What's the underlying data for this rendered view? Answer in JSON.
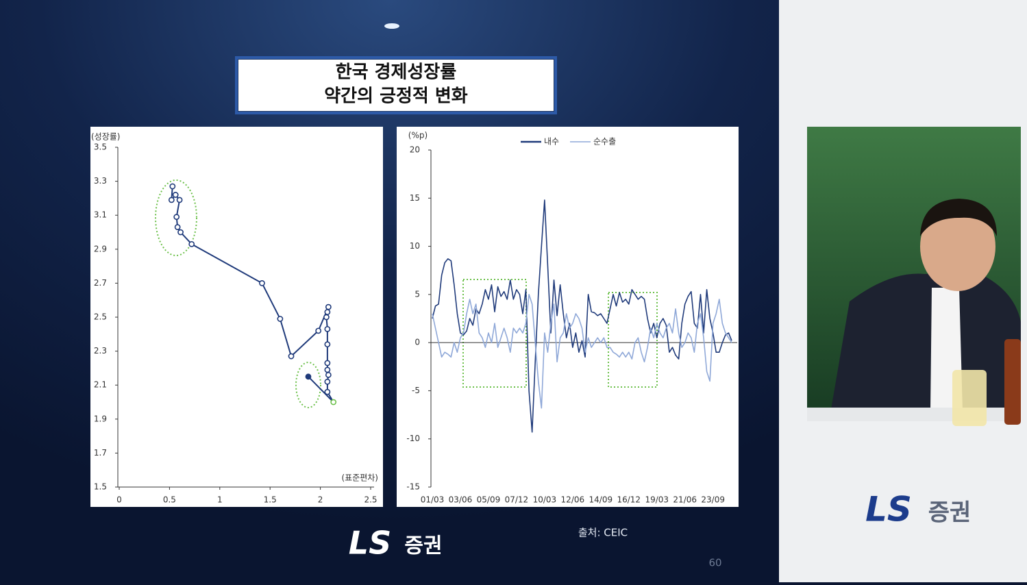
{
  "slide": {
    "title_lines": [
      "한국 경제성장률",
      "약간의 긍정적 변화"
    ],
    "source": "출처: CEIC",
    "page_number": "60",
    "logo": "LS",
    "logo_suffix": "증권"
  },
  "chart_data": [
    {
      "type": "line",
      "ylabel": "(성장률)",
      "xlabel": "(표준편차)",
      "color": "#1f3a7a",
      "markers": true,
      "x": [
        0.53,
        0.52,
        0.56,
        0.6,
        0.57,
        0.58,
        0.61,
        0.72,
        1.42,
        1.6,
        1.71,
        1.98,
        2.08,
        2.07,
        2.06,
        2.07,
        2.07,
        2.07,
        2.07,
        2.08,
        2.07,
        2.07,
        2.13,
        1.88
      ],
      "values": [
        3.27,
        3.19,
        3.22,
        3.19,
        3.09,
        3.03,
        3.0,
        2.93,
        2.7,
        2.49,
        2.27,
        2.42,
        2.56,
        2.53,
        2.5,
        2.43,
        2.34,
        2.23,
        2.19,
        2.16,
        2.12,
        2.06,
        2.0,
        2.15
      ],
      "xlim": [
        0,
        2.5
      ],
      "xticks": [
        0,
        0.5,
        1,
        1.5,
        2,
        2.5
      ],
      "ylim": [
        1.5,
        3.5
      ],
      "yticks": [
        1.5,
        1.7,
        1.9,
        2.1,
        2.3,
        2.5,
        2.7,
        2.9,
        3.1,
        3.3,
        3.5
      ]
    },
    {
      "type": "line",
      "ylabel": "(%p)",
      "legend": "top",
      "categories": [
        "01/03",
        null,
        null,
        null,
        null,
        null,
        null,
        null,
        null,
        "03/06",
        null,
        null,
        null,
        null,
        null,
        null,
        null,
        null,
        "05/09",
        null,
        null,
        null,
        null,
        null,
        null,
        null,
        null,
        "07/12",
        null,
        null,
        null,
        null,
        null,
        null,
        null,
        null,
        "10/03",
        null,
        null,
        null,
        null,
        null,
        null,
        null,
        null,
        "12/06",
        null,
        null,
        null,
        null,
        null,
        null,
        null,
        null,
        "14/09",
        null,
        null,
        null,
        null,
        null,
        null,
        null,
        null,
        "16/12",
        null,
        null,
        null,
        null,
        null,
        null,
        null,
        null,
        "19/03",
        null,
        null,
        null,
        null,
        null,
        null,
        null,
        null,
        "21/06",
        null,
        null,
        null,
        null,
        null,
        null,
        null,
        null,
        "23/09",
        null,
        null,
        null,
        null,
        null,
        null
      ],
      "series": [
        {
          "name": "내수",
          "color": "#1f3a7a",
          "values": [
            2.5,
            3.8,
            4,
            7,
            8.3,
            8.7,
            8.5,
            6,
            3,
            1,
            0.8,
            1.2,
            2.5,
            1.8,
            3.5,
            3,
            4,
            5.5,
            4.5,
            6,
            3.2,
            5.8,
            4.8,
            5.3,
            4.5,
            6.5,
            4.5,
            5.5,
            5,
            3,
            5.5,
            -5,
            -9.3,
            -2,
            5,
            10,
            14.8,
            8,
            1,
            6.5,
            2.8,
            6,
            3,
            0.5,
            2,
            -0.5,
            1,
            -1,
            0.2,
            -1.5,
            5,
            3.2,
            3.1,
            2.8,
            3,
            2.5,
            2,
            3.5,
            5,
            3.8,
            5.2,
            4.2,
            4.5,
            4,
            5.5,
            5,
            4.5,
            4.8,
            4.5,
            2.5,
            1,
            2,
            0.5,
            2,
            2.5,
            1.8,
            -1,
            -0.5,
            -1.3,
            -1.7,
            2,
            4,
            4.8,
            5.3,
            2,
            1.5,
            5,
            1,
            5.5,
            2.5,
            1,
            -1,
            -1,
            0,
            0.8,
            1,
            0.2
          ]
        },
        {
          "name": "순수출",
          "color": "#8fa8d8",
          "values": [
            3,
            1.5,
            0,
            -1.5,
            -1,
            -1.2,
            -1.5,
            0,
            -1,
            0.5,
            1,
            3,
            4.5,
            3,
            4,
            1,
            0.5,
            -0.5,
            1,
            0,
            2,
            -0.5,
            0.5,
            1.5,
            0.5,
            -1,
            1.5,
            1,
            1.5,
            1,
            2,
            5,
            4,
            0,
            -4,
            -6.8,
            1,
            -1,
            2,
            4,
            -2,
            0.5,
            1,
            3,
            1.5,
            2,
            3,
            2.5,
            1.5,
            -1,
            0.5,
            -0.5,
            0,
            0.5,
            0,
            0.5,
            -0.5,
            -0.5,
            -1,
            -1.2,
            -1.5,
            -1,
            -1.5,
            -1,
            -1.7,
            0,
            0.5,
            -1,
            -2,
            -0.5,
            1.5,
            0.5,
            2,
            1,
            0.5,
            1.5,
            2,
            1,
            3.5,
            1,
            -0.5,
            0,
            1,
            0.5,
            -1,
            2,
            3,
            0.5,
            -3,
            -4,
            2,
            3,
            4.5,
            2,
            1,
            0.5,
            0
          ]
        }
      ],
      "ylim": [
        -15,
        20
      ],
      "yticks": [
        -15,
        -10,
        -5,
        0,
        5,
        10,
        15,
        20
      ]
    }
  ]
}
